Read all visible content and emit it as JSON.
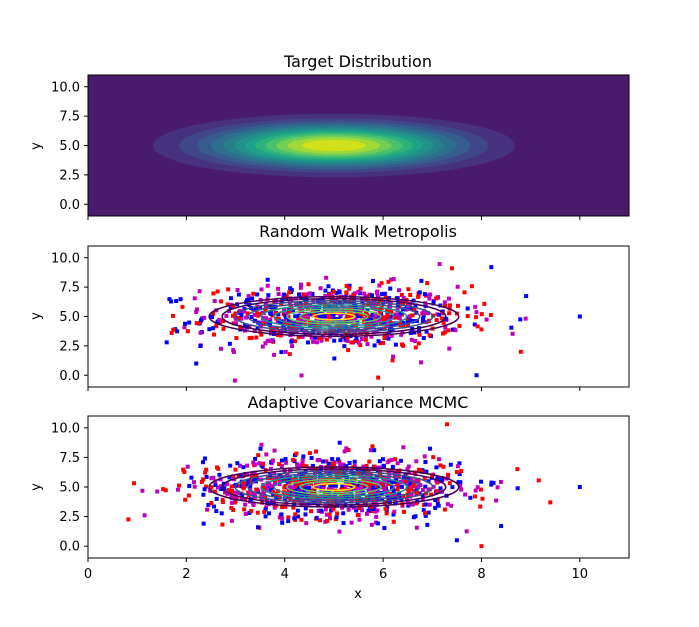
{
  "chart_data": [
    {
      "type": "heatmap",
      "title": "Target Distribution",
      "xlabel": "",
      "ylabel": "y",
      "xlim": [
        0,
        11
      ],
      "ylim": [
        -1,
        11
      ],
      "xticks": [
        "0",
        "2",
        "4",
        "6",
        "8",
        "10"
      ],
      "yticks": [
        "0.0",
        "2.5",
        "5.0",
        "7.5",
        "10.0"
      ],
      "show_xtick_labels": false,
      "mean": [
        5,
        5
      ],
      "std": [
        1.8,
        1.2
      ],
      "colormap": [
        "#481b6d",
        "#46327e",
        "#3f4788",
        "#365c8d",
        "#2e6e8e",
        "#277f8e",
        "#21918c",
        "#1fa187",
        "#2db27d",
        "#4ac16d",
        "#71cf57",
        "#a0da39",
        "#d0e11c"
      ],
      "grid": false
    },
    {
      "type": "scatter",
      "title": "Random Walk Metropolis",
      "xlabel": "",
      "ylabel": "y",
      "xlim": [
        0,
        11
      ],
      "ylim": [
        -1,
        11
      ],
      "xticks": [
        "0",
        "2",
        "4",
        "6",
        "8",
        "10"
      ],
      "yticks": [
        "0.0",
        "2.5",
        "5.0",
        "7.5",
        "10.0"
      ],
      "show_xtick_labels": false,
      "sample_cloud": {
        "center": [
          5,
          5
        ],
        "spread": [
          1.3,
          1.3
        ],
        "n": 900
      },
      "outliers": [
        [
          10,
          5
        ],
        [
          8.8,
          2
        ],
        [
          8.2,
          9.2
        ],
        [
          8.0,
          3.9
        ],
        [
          1.6,
          2.8
        ],
        [
          1.7,
          3.6
        ],
        [
          2.2,
          1.0
        ],
        [
          7.4,
          9.1
        ],
        [
          7.9,
          0.0
        ],
        [
          5.9,
          -0.2
        ]
      ],
      "contour": {
        "center": [
          5,
          5
        ],
        "std": [
          1.8,
          1.2
        ],
        "levels": 9
      },
      "colors": [
        "#0000ff",
        "#ff0000",
        "#c000c0"
      ],
      "contour_colors": [
        "#440154",
        "#3b528b",
        "#21918c",
        "#5ec962",
        "#fde725"
      ],
      "grid": false
    },
    {
      "type": "scatter",
      "title": "Adaptive Covariance MCMC",
      "xlabel": "x",
      "ylabel": "y",
      "xlim": [
        0,
        11
      ],
      "ylim": [
        -1,
        11
      ],
      "xticks": [
        "0",
        "2",
        "4",
        "6",
        "8",
        "10"
      ],
      "yticks": [
        "0.0",
        "2.5",
        "5.0",
        "7.5",
        "10.0"
      ],
      "show_xtick_labels": true,
      "sample_cloud": {
        "center": [
          5,
          5
        ],
        "spread": [
          1.3,
          1.3
        ],
        "n": 1100
      },
      "outliers": [
        [
          10,
          5
        ],
        [
          9.4,
          3.7
        ],
        [
          8.2,
          5.2
        ],
        [
          7.3,
          10.3
        ],
        [
          8.4,
          1.7
        ],
        [
          8.0,
          0.0
        ],
        [
          7.5,
          0.5
        ]
      ],
      "contour": {
        "center": [
          5,
          5
        ],
        "std": [
          1.8,
          1.2
        ],
        "levels": 9
      },
      "colors": [
        "#0000ff",
        "#ff0000",
        "#c000c0"
      ],
      "contour_colors": [
        "#440154",
        "#3b528b",
        "#21918c",
        "#5ec962",
        "#fde725"
      ],
      "grid": false
    }
  ]
}
